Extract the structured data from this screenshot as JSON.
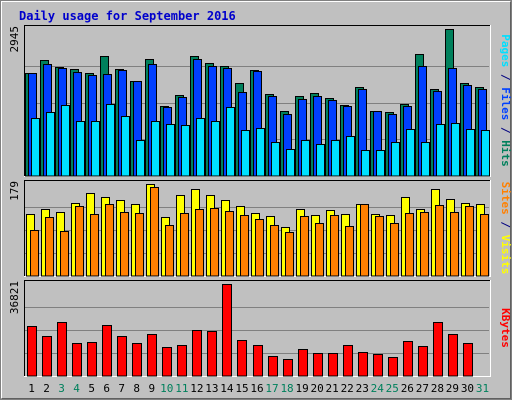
{
  "chart_data": {
    "type": "bar",
    "title": "Daily usage for September 2016",
    "x": [
      1,
      2,
      3,
      4,
      5,
      6,
      7,
      8,
      9,
      10,
      11,
      12,
      13,
      14,
      15,
      16,
      17,
      18,
      19,
      20,
      21,
      22,
      23,
      24,
      25,
      26,
      27,
      28,
      29,
      30,
      31
    ],
    "weekend_days": [
      3,
      4,
      10,
      11,
      17,
      18,
      24,
      25,
      31
    ],
    "panels": [
      {
        "id": "pages-files-hits",
        "max_label": "2945",
        "ylim": [
          0,
          2945
        ],
        "side_label": [
          {
            "text": "Pages",
            "color": "#00e0ff"
          },
          {
            "text": " / ",
            "color": "#000080"
          },
          {
            "text": "Files",
            "color": "#0040ff"
          },
          {
            "text": " / ",
            "color": "#000080"
          },
          {
            "text": "Hits",
            "color": "#00805c"
          }
        ],
        "series": [
          {
            "name": "Hits",
            "color": "#00805c",
            "values": [
              2070,
              2320,
              2190,
              2140,
              2060,
              2410,
              2150,
              1910,
              2340,
              1400,
              1620,
              2410,
              2270,
              2200,
              1870,
              2130,
              1650,
              1300,
              1600,
              1660,
              1560,
              1430,
              1790,
              1310,
              1290,
              1450,
              2450,
              1750,
              2945,
              1860,
              1780
            ]
          },
          {
            "name": "Files",
            "color": "#0040ff",
            "values": [
              2070,
              2250,
              2160,
              2090,
              2020,
              2040,
              2120,
              1900,
              2250,
              1390,
              1590,
              2340,
              2200,
              2170,
              1690,
              2110,
              1600,
              1240,
              1550,
              1600,
              1530,
              1410,
              1740,
              1300,
              1250,
              1400,
              2200,
              1710,
              2170,
              1820,
              1750
            ]
          },
          {
            "name": "Pages",
            "color": "#00e0ff",
            "values": [
              1170,
              1280,
              1420,
              1100,
              1100,
              1440,
              1200,
              720,
              1100,
              1050,
              1030,
              1170,
              1100,
              1380,
              920,
              960,
              680,
              540,
              730,
              650,
              720,
              810,
              530,
              520,
              690,
              940,
              690,
              1040,
              1070,
              950,
              920
            ]
          }
        ]
      },
      {
        "id": "visits-sites",
        "max_label": "179",
        "ylim": [
          0,
          179
        ],
        "side_label": [
          {
            "text": "Sites",
            "color": "#ff8000"
          },
          {
            "text": " / ",
            "color": "#000080"
          },
          {
            "text": "Visits",
            "color": "#ffff00"
          }
        ],
        "series": [
          {
            "name": "Visits",
            "color": "#ffff00",
            "values": [
              120,
              130,
              125,
              142,
              162,
              153,
              148,
              140,
              179,
              115,
              158,
              169,
              157,
              148,
              137,
              123,
              116,
              95,
              131,
              119,
              128,
              120,
              141,
              120,
              118,
              153,
              131,
              170,
              150,
              143,
              140
            ]
          },
          {
            "name": "Sites",
            "color": "#ff8000",
            "values": [
              90,
              114,
              88,
              137,
              121,
              140,
              125,
              123,
              173,
              100,
              123,
              130,
              133,
              127,
              118,
              110,
              100,
              85,
              116,
              104,
              118,
              97,
              140,
              117,
              103,
              123,
              124,
              139,
              124,
              136,
              121
            ]
          }
        ]
      },
      {
        "id": "kbytes",
        "max_label": "36821",
        "ylim": [
          0,
          36821
        ],
        "side_label": [
          {
            "text": "KBytes",
            "color": "#ff0000"
          }
        ],
        "series": [
          {
            "name": "KBytes",
            "color": "#ff0000",
            "values": [
              20100,
              15900,
              21600,
              13100,
              13500,
              20300,
              16000,
              13100,
              16800,
              11700,
              12400,
              18600,
              17900,
              36821,
              14300,
              12400,
              8000,
              6800,
              10900,
              9400,
              9100,
              12500,
              9600,
              8700,
              7800,
              14000,
              12100,
              21600,
              16800,
              13400,
              0
            ]
          }
        ]
      }
    ]
  }
}
